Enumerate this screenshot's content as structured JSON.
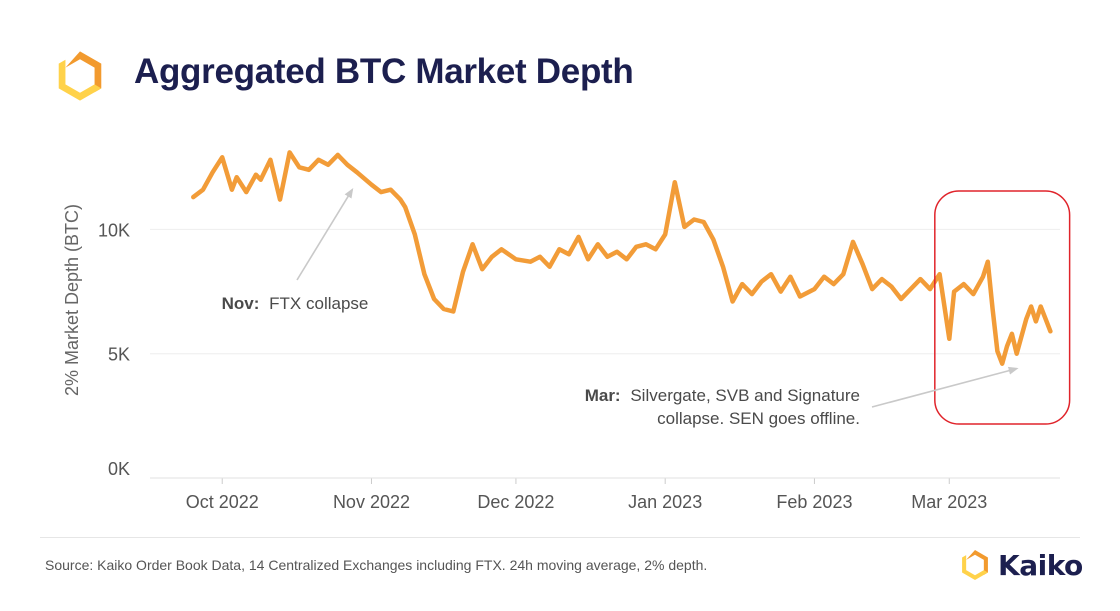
{
  "header": {
    "title": "Aggregated BTC Market Depth"
  },
  "footer": {
    "source": "Source: Kaiko Order Book Data, 14 Centralized Exchanges including FTX. 24h moving average, 2% depth.",
    "brand_name": "Kaiko"
  },
  "colors": {
    "line": "#f29c38",
    "title": "#1c1f4f",
    "highlight": "#e0242b",
    "logo_orange": "#f29a2e",
    "logo_yellow": "#ffd24a"
  },
  "chart_data": {
    "type": "line",
    "title": "Aggregated BTC Market Depth",
    "xlabel": "",
    "ylabel": "2% Market Depth (BTC)",
    "ylim": [
      0,
      14000
    ],
    "yticks": [
      0,
      5000,
      10000
    ],
    "yticklabels": [
      "0K",
      "5K",
      "10K"
    ],
    "xlim": [
      "2022-09-16",
      "2023-03-24"
    ],
    "xticks": [
      "2022-10-01",
      "2022-11-01",
      "2022-12-01",
      "2023-01-01",
      "2023-02-01",
      "2023-03-01"
    ],
    "xticklabels": [
      "Oct 2022",
      "Nov 2022",
      "Dec 2022",
      "Jan 2023",
      "Feb 2023",
      "Mar 2023"
    ],
    "grid": true,
    "series": [
      {
        "name": "",
        "x": [
          "2022-09-25",
          "2022-09-27",
          "2022-09-29",
          "2022-10-01",
          "2022-10-03",
          "2022-10-04",
          "2022-10-06",
          "2022-10-08",
          "2022-10-09",
          "2022-10-11",
          "2022-10-13",
          "2022-10-15",
          "2022-10-17",
          "2022-10-19",
          "2022-10-21",
          "2022-10-23",
          "2022-10-25",
          "2022-10-27",
          "2022-10-29",
          "2022-11-01",
          "2022-11-03",
          "2022-11-05",
          "2022-11-07",
          "2022-11-08",
          "2022-11-10",
          "2022-11-12",
          "2022-11-14",
          "2022-11-16",
          "2022-11-18",
          "2022-11-20",
          "2022-11-22",
          "2022-11-24",
          "2022-11-26",
          "2022-11-28",
          "2022-12-01",
          "2022-12-04",
          "2022-12-06",
          "2022-12-08",
          "2022-12-10",
          "2022-12-12",
          "2022-12-14",
          "2022-12-16",
          "2022-12-18",
          "2022-12-20",
          "2022-12-22",
          "2022-12-24",
          "2022-12-26",
          "2022-12-28",
          "2022-12-30",
          "2023-01-01",
          "2023-01-03",
          "2023-01-05",
          "2023-01-07",
          "2023-01-09",
          "2023-01-11",
          "2023-01-13",
          "2023-01-15",
          "2023-01-17",
          "2023-01-19",
          "2023-01-21",
          "2023-01-23",
          "2023-01-25",
          "2023-01-27",
          "2023-01-29",
          "2023-02-01",
          "2023-02-03",
          "2023-02-05",
          "2023-02-07",
          "2023-02-09",
          "2023-02-11",
          "2023-02-13",
          "2023-02-15",
          "2023-02-17",
          "2023-02-19",
          "2023-02-21",
          "2023-02-23",
          "2023-02-25",
          "2023-02-27",
          "2023-03-01",
          "2023-03-02",
          "2023-03-04",
          "2023-03-06",
          "2023-03-08",
          "2023-03-09",
          "2023-03-10",
          "2023-03-11",
          "2023-03-12",
          "2023-03-13",
          "2023-03-14",
          "2023-03-15",
          "2023-03-17",
          "2023-03-18",
          "2023-03-19",
          "2023-03-20",
          "2023-03-21",
          "2023-03-22"
        ],
        "values": [
          11300,
          11600,
          12300,
          12900,
          11600,
          12100,
          11500,
          12200,
          12000,
          12800,
          11200,
          13100,
          12500,
          12400,
          12800,
          12600,
          13000,
          12600,
          12300,
          11800,
          11500,
          11600,
          11200,
          10900,
          9800,
          8200,
          7200,
          6800,
          6700,
          8300,
          9400,
          8400,
          8900,
          9200,
          8800,
          8700,
          8900,
          8500,
          9200,
          9000,
          9700,
          8800,
          9400,
          8900,
          9100,
          8800,
          9300,
          9400,
          9200,
          9800,
          11900,
          10100,
          10400,
          10300,
          9600,
          8500,
          7100,
          7800,
          7400,
          7900,
          8200,
          7500,
          8100,
          7300,
          7600,
          8100,
          7800,
          8200,
          9500,
          8600,
          7600,
          8000,
          7700,
          7200,
          7600,
          8000,
          7600,
          8200,
          5600,
          7500,
          7800,
          7400,
          8100,
          8700,
          6800,
          5100,
          4600,
          5300,
          5800,
          5000,
          6400,
          6900,
          6300,
          6900,
          6400,
          5900
        ]
      }
    ],
    "annotations": [
      {
        "bold": "Nov:",
        "text": "FTX collapse"
      },
      {
        "bold": "Mar:",
        "text": "Silvergate, SVB and Signature",
        "text2": "collapse. SEN goes offline."
      }
    ]
  }
}
